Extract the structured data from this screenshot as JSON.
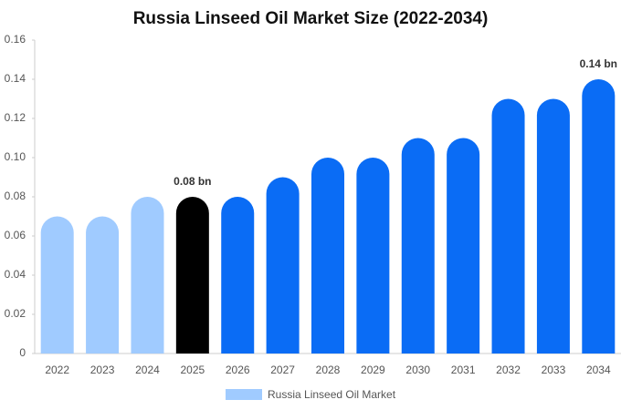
{
  "chart_data": {
    "type": "bar",
    "title": "Russia Linseed Oil Market Size (2022-2034)",
    "categories": [
      "2022",
      "2023",
      "2024",
      "2025",
      "2026",
      "2027",
      "2028",
      "2029",
      "2030",
      "2031",
      "2032",
      "2033",
      "2034"
    ],
    "series": [
      {
        "name": "Russia Linseed Oil Market",
        "color": "#a0cbff",
        "values": [
          0.07,
          0.07,
          0.08,
          0.08,
          0.08,
          0.09,
          0.1,
          0.1,
          0.11,
          0.11,
          0.13,
          0.13,
          0.14
        ],
        "value_labels": [
          null,
          null,
          null,
          "0.08 bn",
          null,
          null,
          null,
          null,
          null,
          null,
          null,
          null,
          "0.14 bn"
        ],
        "colors": [
          "#a0cbff",
          "#a0cbff",
          "#a0cbff",
          "#000000",
          "#0a6cf5",
          "#0a6cf5",
          "#0a6cf5",
          "#0a6cf5",
          "#0a6cf5",
          "#0a6cf5",
          "#0a6cf5",
          "#0a6cf5",
          "#0a6cf5"
        ]
      }
    ],
    "ylim": [
      0,
      0.16
    ],
    "yticks": [
      0,
      0.02,
      0.04,
      0.06,
      0.08,
      {
        "value": 0.1,
        "label": "0.10"
      },
      0.12,
      0.14,
      0.16
    ],
    "grid": false,
    "legend": "bottom"
  }
}
